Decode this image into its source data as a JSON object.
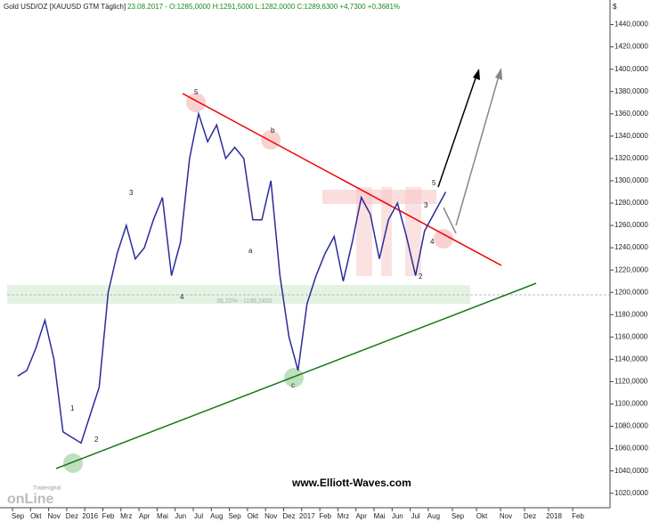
{
  "chart_data": {
    "type": "line",
    "title": "Gold USD/OZ [XAUUSD GTM  Täglich]",
    "subtitle": "23.08.2017 - O:1285,0000 H:1291,5000 L:1282,0000 C:1289,6300 +4,7300 +0,3681%",
    "y_axis_label": "$",
    "categories": [
      "Sep",
      null,
      "Okt",
      null,
      "Nov",
      null,
      "Dez",
      null,
      "2016",
      null,
      "Feb",
      null,
      "Mrz",
      null,
      "Apr",
      null,
      "Mai",
      null,
      "Jun",
      null,
      "Jul",
      null,
      "Aug",
      null,
      "Sep",
      null,
      "Okt",
      null,
      "Nov",
      null,
      "Dez",
      null,
      "2017",
      null,
      "Feb",
      null,
      "Mrz",
      null,
      "Apr",
      null,
      "Mai",
      null,
      "Jun",
      null,
      "Jul",
      null,
      "Aug",
      null,
      "Sep",
      null,
      "Okt",
      null,
      "Nov",
      null,
      "Dez",
      null,
      "2018",
      null,
      "Feb",
      null
    ],
    "series": [
      {
        "name": "Gold USD/OZ",
        "color": "#2b2b9a",
        "values": [
          1125,
          1130,
          1150,
          1175,
          1140,
          1075,
          1070,
          1065,
          1090,
          1115,
          1200,
          1235,
          1260,
          1230,
          1240,
          1265,
          1285,
          1215,
          1245,
          1320,
          1360,
          1335,
          1350,
          1320,
          1330,
          1320,
          1265,
          1265,
          1300,
          1215,
          1160,
          1130,
          1190,
          1215,
          1235,
          1250,
          1210,
          1245,
          1285,
          1270,
          1230,
          1265,
          1280,
          1250,
          1215,
          1255,
          1270,
          1290,
          null,
          null,
          null,
          null,
          null,
          null,
          null,
          null,
          null,
          null,
          null,
          null
        ]
      }
    ],
    "ylim": [
      1007,
      1462
    ],
    "yticks": [
      {
        "value": 1020,
        "label": "1020,0000"
      },
      {
        "value": 1040,
        "label": "1040,0000"
      },
      {
        "value": 1060,
        "label": "1060,0000"
      },
      {
        "value": 1080,
        "label": "1080,0000"
      },
      {
        "value": 1100,
        "label": "1100,0000"
      },
      {
        "value": 1120,
        "label": "1120,0000"
      },
      {
        "value": 1140,
        "label": "1140,0000"
      },
      {
        "value": 1160,
        "label": "1160,0000"
      },
      {
        "value": 1180,
        "label": "1180,0000"
      },
      {
        "value": 1200,
        "label": "1200,0000"
      },
      {
        "value": 1220,
        "label": "1220,0000"
      },
      {
        "value": 1240,
        "label": "1240,0000"
      },
      {
        "value": 1260,
        "label": "1260,0000"
      },
      {
        "value": 1280,
        "label": "1280,0000"
      },
      {
        "value": 1300,
        "label": "1300,0000"
      },
      {
        "value": 1320,
        "label": "1320,0000"
      },
      {
        "value": 1340,
        "label": "1340,0000"
      },
      {
        "value": 1360,
        "label": "1360,0000"
      },
      {
        "value": 1380,
        "label": "1380,0000"
      },
      {
        "value": 1400,
        "label": "1400,0000"
      },
      {
        "value": 1420,
        "label": "1420,0000"
      },
      {
        "value": 1440,
        "label": "1440,0000"
      }
    ],
    "annotations": [
      "5",
      "b",
      "3",
      "a",
      "4",
      "1",
      "2",
      "c",
      "5",
      "3",
      "4",
      "2",
      "38,20% - 1198,2400",
      "www.Elliott-Waves.com"
    ],
    "logo": [
      "Tradesignal",
      "onLine"
    ]
  }
}
